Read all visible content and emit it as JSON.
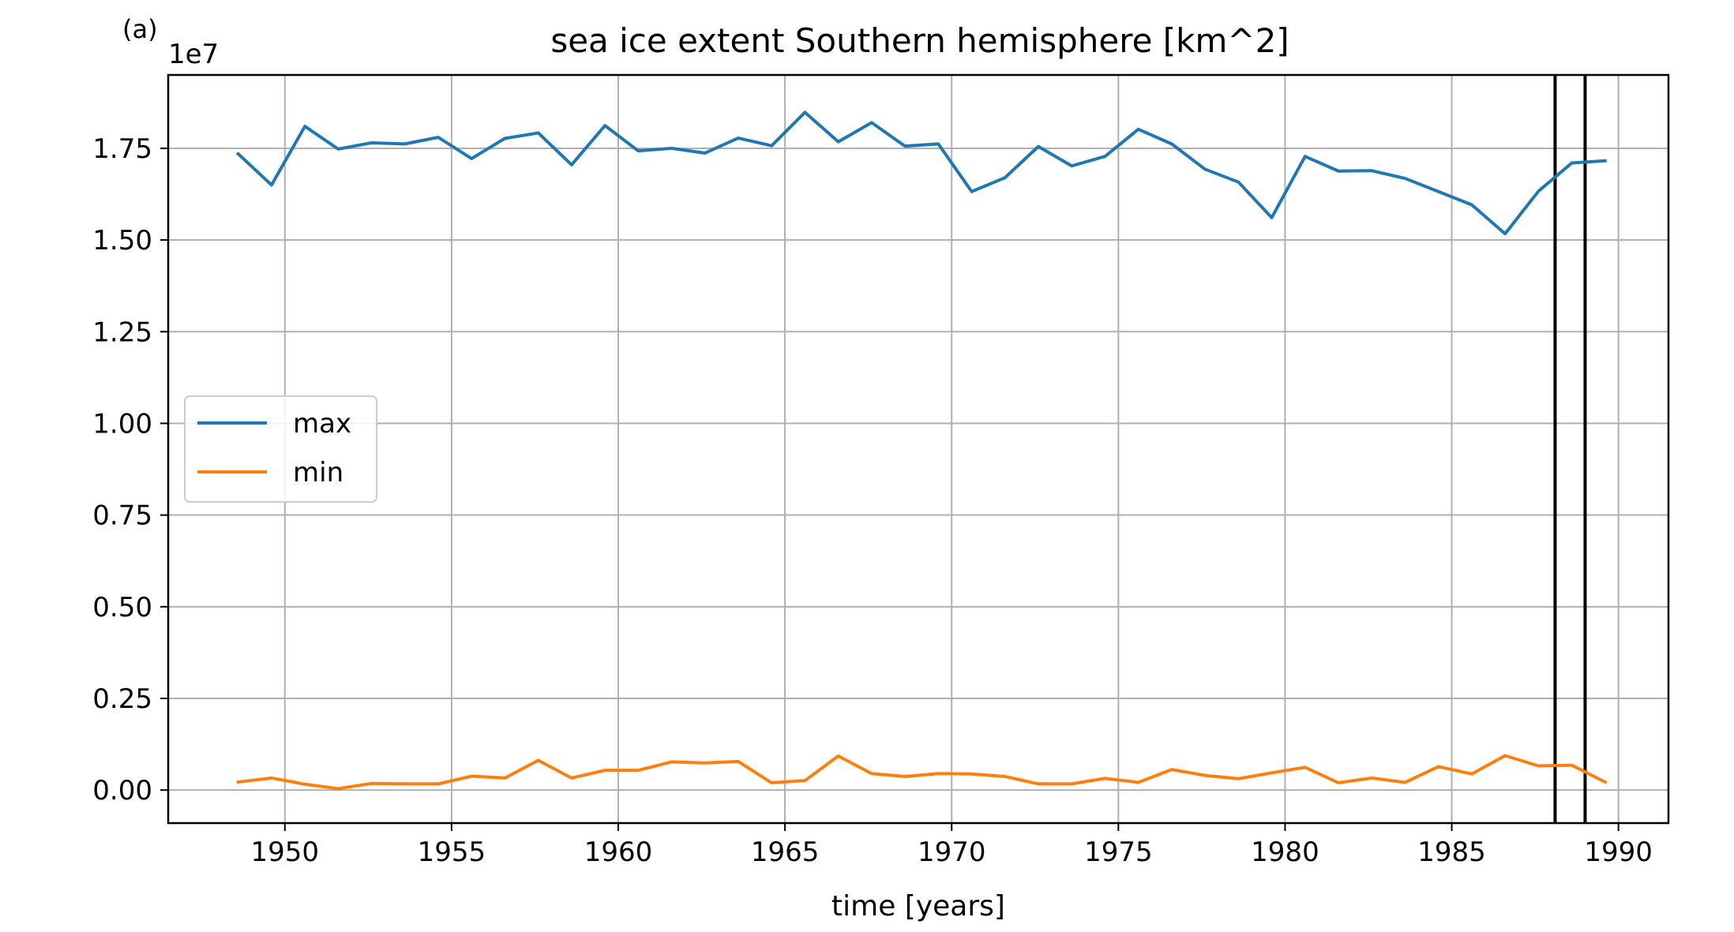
{
  "panel_label": "(a)",
  "chart_data": {
    "type": "line",
    "title": "sea ice extent Southern hemisphere [km^2]",
    "xlabel": "time [years]",
    "ylabel": "",
    "y_offset_label": "1e7",
    "xlim": [
      1946.5,
      1991.5
    ],
    "ylim": [
      -0.09,
      1.95
    ],
    "y_scale": 10000000,
    "x_ticks": [
      1950,
      1955,
      1960,
      1965,
      1970,
      1975,
      1980,
      1985,
      1990
    ],
    "x_tick_labels": [
      "1950",
      "1955",
      "1960",
      "1965",
      "1970",
      "1975",
      "1980",
      "1985",
      "1990"
    ],
    "y_ticks": [
      0.0,
      0.25,
      0.5,
      0.75,
      1.0,
      1.25,
      1.5,
      1.75
    ],
    "y_tick_labels": [
      "0.00",
      "0.25",
      "0.50",
      "0.75",
      "1.00",
      "1.25",
      "1.50",
      "1.75"
    ],
    "grid": true,
    "legend_position": "center-left",
    "vertical_lines": [
      1988.1,
      1989.0
    ],
    "x": [
      1948.6,
      1949.6,
      1950.6,
      1951.6,
      1952.6,
      1953.6,
      1954.6,
      1955.6,
      1956.6,
      1957.6,
      1958.6,
      1959.6,
      1960.6,
      1961.6,
      1962.6,
      1963.6,
      1964.6,
      1965.6,
      1966.6,
      1967.6,
      1968.6,
      1969.6,
      1970.6,
      1971.6,
      1972.6,
      1973.6,
      1974.6,
      1975.6,
      1976.6,
      1977.6,
      1978.6,
      1979.6,
      1980.6,
      1981.6,
      1982.6,
      1983.6,
      1984.6,
      1985.6,
      1986.6,
      1987.6,
      1988.6,
      1989.6
    ],
    "series": [
      {
        "name": "max",
        "color": "#1f77b4",
        "values": [
          1.735,
          1.65,
          1.81,
          1.748,
          1.765,
          1.762,
          1.78,
          1.722,
          1.777,
          1.792,
          1.705,
          1.812,
          1.743,
          1.75,
          1.737,
          1.778,
          1.757,
          1.848,
          1.768,
          1.82,
          1.756,
          1.762,
          1.632,
          1.67,
          1.755,
          1.702,
          1.728,
          1.802,
          1.762,
          1.693,
          1.658,
          1.561,
          1.728,
          1.688,
          1.689,
          1.668,
          1.632,
          1.596,
          1.517,
          1.633,
          1.71,
          1.716
        ]
      },
      {
        "name": "min",
        "color": "#ff7f0e",
        "values": [
          0.022,
          0.033,
          0.016,
          0.004,
          0.018,
          0.017,
          0.017,
          0.038,
          0.033,
          0.081,
          0.033,
          0.054,
          0.054,
          0.077,
          0.074,
          0.078,
          0.02,
          0.026,
          0.093,
          0.045,
          0.037,
          0.045,
          0.044,
          0.037,
          0.017,
          0.017,
          0.032,
          0.021,
          0.056,
          0.04,
          0.031,
          0.047,
          0.062,
          0.02,
          0.033,
          0.021,
          0.064,
          0.044,
          0.094,
          0.066,
          0.068,
          0.022
        ]
      }
    ]
  }
}
